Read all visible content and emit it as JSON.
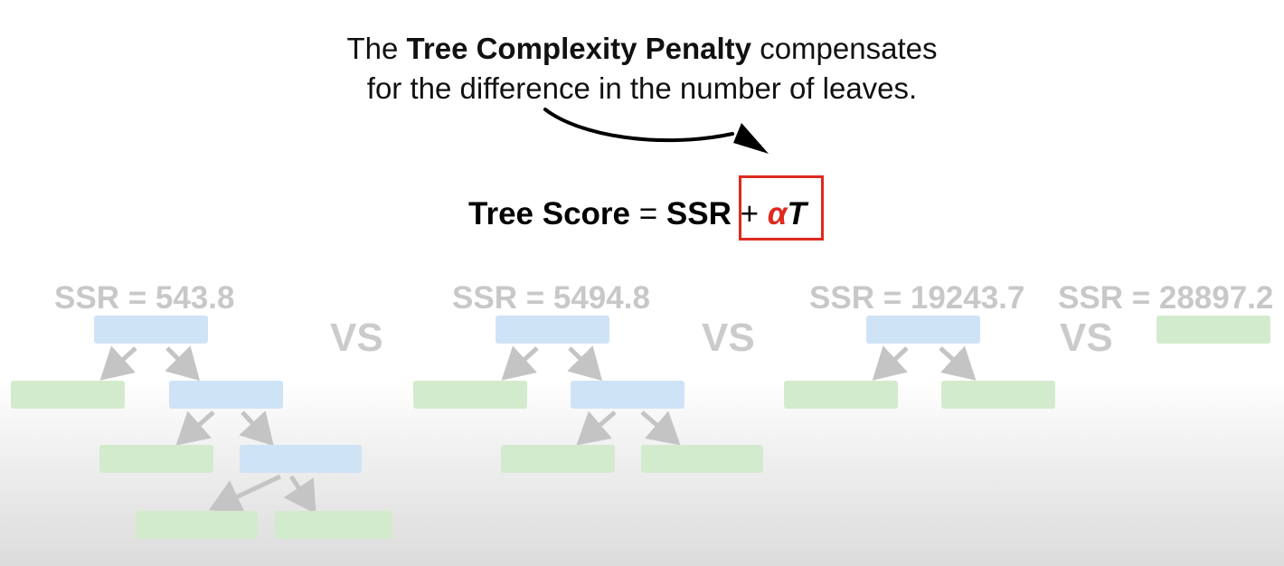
{
  "caption": {
    "prefix": "The ",
    "bold": "Tree Complexity Penalty",
    "line1_suffix": " compensates",
    "line2": "for the difference in the number of leaves."
  },
  "formula": {
    "lhs": "Tree Score",
    "equals": " = ",
    "ssr": "SSR",
    "plus": " + ",
    "alpha": "α",
    "t": "T"
  },
  "colors": {
    "accent_red": "#e0281e",
    "node_blue": "#cfe3f7",
    "node_green": "#d3ebcd",
    "faded_text": "#c8c8c8"
  },
  "trees": [
    {
      "ssr_label": "SSR = 543.8"
    },
    {
      "ssr_label": "SSR = 5494.8"
    },
    {
      "ssr_label": "SSR = 19243.7"
    },
    {
      "ssr_label": "SSR = 28897.2"
    }
  ],
  "vs_label": "VS"
}
